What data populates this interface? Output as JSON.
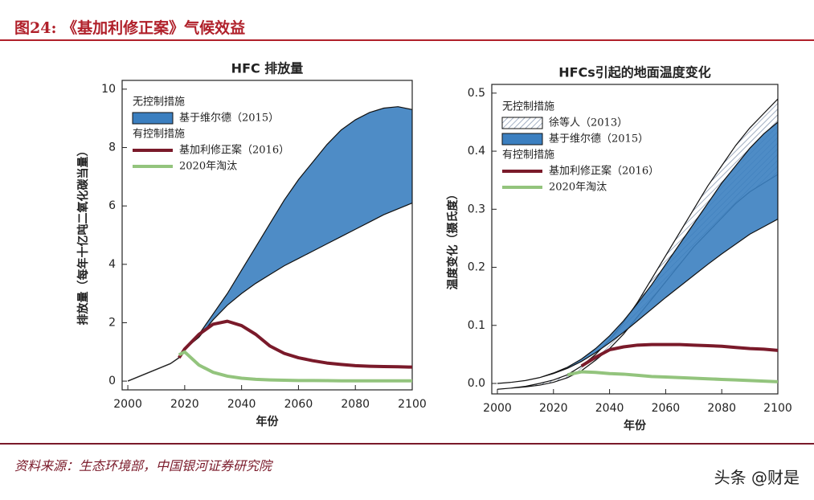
{
  "header": {
    "title": "图24: 《基加利修正案》气候效益"
  },
  "source": "资料来源：生态环境部，中国银河证券研究院",
  "watermark": "头条 @财是",
  "chart_data": [
    {
      "type": "line",
      "title": "HFC 排放量",
      "x_label": "年份",
      "y_label": "排放量（每年十亿吨二氧化碳当量）",
      "legend_headings": [
        "无控制措施",
        "有控制措施"
      ],
      "x": [
        2000,
        2005,
        2010,
        2015,
        2018,
        2020,
        2025,
        2030,
        2035,
        2040,
        2045,
        2050,
        2055,
        2060,
        2065,
        2070,
        2075,
        2080,
        2085,
        2090,
        2095,
        2100
      ],
      "xlim": [
        1998,
        2100
      ],
      "ylim": [
        -0.3,
        10.3
      ],
      "xticks": [
        2000,
        2020,
        2040,
        2060,
        2080,
        2100
      ],
      "yticks": [
        0,
        2,
        4,
        6,
        8,
        10
      ],
      "series": [
        {
          "name": "基于维尔德（2015）",
          "kind": "band",
          "color": "#3b7fc0",
          "high": [
            null,
            null,
            null,
            null,
            null,
            1.1,
            1.6,
            2.3,
            3.0,
            3.8,
            4.6,
            5.4,
            6.2,
            6.9,
            7.5,
            8.1,
            8.6,
            8.95,
            9.2,
            9.35,
            9.4,
            9.3
          ],
          "low": [
            null,
            null,
            null,
            null,
            null,
            1.1,
            1.5,
            2.1,
            2.6,
            3.0,
            3.35,
            3.65,
            3.95,
            4.2,
            4.45,
            4.7,
            4.95,
            5.2,
            5.45,
            5.7,
            5.9,
            6.1
          ]
        },
        {
          "kind": "line",
          "color": "#222222",
          "values": [
            0,
            0.2,
            0.4,
            0.6,
            0.8,
            null,
            null,
            null,
            null,
            null,
            null,
            null,
            null,
            null,
            null,
            null,
            null,
            null,
            null,
            null,
            null,
            null
          ]
        },
        {
          "name": "基加利修正案（2016）",
          "kind": "line",
          "color": "#7a1a2a",
          "values": [
            null,
            null,
            null,
            null,
            0.8,
            1.1,
            1.6,
            1.95,
            2.05,
            1.9,
            1.6,
            1.2,
            0.95,
            0.8,
            0.7,
            0.62,
            0.57,
            0.53,
            0.51,
            0.5,
            0.49,
            0.48
          ]
        },
        {
          "name": "2020年淘汰",
          "kind": "line",
          "color": "#93c47d",
          "values": [
            null,
            null,
            null,
            null,
            0.9,
            1.0,
            0.55,
            0.3,
            0.17,
            0.1,
            0.06,
            0.04,
            0.03,
            0.02,
            0.02,
            0.015,
            0.01,
            0.01,
            0.01,
            0.01,
            0.01,
            0.01
          ]
        }
      ]
    },
    {
      "type": "line",
      "title": "HFCs引起的地面温度变化",
      "x_label": "年份",
      "y_label": "温度变化（摄氏度）",
      "legend_headings": [
        "无控制措施",
        "有控制措施"
      ],
      "x": [
        2000,
        2005,
        2010,
        2015,
        2020,
        2025,
        2030,
        2035,
        2040,
        2045,
        2050,
        2055,
        2060,
        2065,
        2070,
        2075,
        2080,
        2085,
        2090,
        2095,
        2100
      ],
      "xlim": [
        1998,
        2100
      ],
      "ylim": [
        -0.018,
        0.515
      ],
      "xticks": [
        2000,
        2020,
        2040,
        2060,
        2080,
        2100
      ],
      "yticks": [
        {
          "value": 0,
          "label": "0.0"
        },
        0.1,
        0.2,
        0.3,
        0.4,
        0.5
      ],
      "series": [
        {
          "name": "徐等人（2013）",
          "kind": "band",
          "color": "#c8d4e8",
          "hatch": true,
          "high": [
            -0.01,
            -0.008,
            -0.005,
            0,
            0.006,
            0.015,
            0.03,
            0.05,
            0.075,
            0.105,
            0.14,
            0.18,
            0.22,
            0.26,
            0.3,
            0.34,
            0.375,
            0.41,
            0.44,
            0.465,
            0.49
          ],
          "low": [
            -0.01,
            -0.008,
            -0.006,
            -0.003,
            0.002,
            0.01,
            0.022,
            0.04,
            0.06,
            0.085,
            0.115,
            0.145,
            0.175,
            0.205,
            0.235,
            0.26,
            0.285,
            0.31,
            0.33,
            0.345,
            0.36
          ]
        },
        {
          "name": "基于维尔德（2015）",
          "kind": "band",
          "color": "#3b7fc0",
          "high": [
            0,
            0.002,
            0.005,
            0.01,
            0.018,
            0.028,
            0.042,
            0.06,
            0.082,
            0.108,
            0.138,
            0.17,
            0.205,
            0.24,
            0.275,
            0.31,
            0.345,
            0.375,
            0.405,
            0.43,
            0.45
          ],
          "low": [
            0,
            0.002,
            0.005,
            0.01,
            0.017,
            0.026,
            0.038,
            0.053,
            0.07,
            0.088,
            0.108,
            0.128,
            0.148,
            0.167,
            0.186,
            0.205,
            0.223,
            0.24,
            0.257,
            0.27,
            0.283
          ]
        },
        {
          "name": "基加利修正案（2016）",
          "kind": "line",
          "color": "#7a1a2a",
          "values": [
            null,
            null,
            null,
            null,
            null,
            null,
            0.03,
            0.045,
            0.058,
            0.063,
            0.066,
            0.067,
            0.067,
            0.067,
            0.066,
            0.065,
            0.064,
            0.062,
            0.06,
            0.059,
            0.057
          ]
        },
        {
          "name": "2020年淘汰",
          "kind": "line",
          "color": "#93c47d",
          "values": [
            null,
            null,
            null,
            null,
            null,
            0.015,
            0.02,
            0.019,
            0.017,
            0.016,
            0.014,
            0.012,
            0.011,
            0.01,
            0.009,
            0.008,
            0.007,
            0.006,
            0.005,
            0.004,
            0.003
          ]
        }
      ]
    }
  ]
}
